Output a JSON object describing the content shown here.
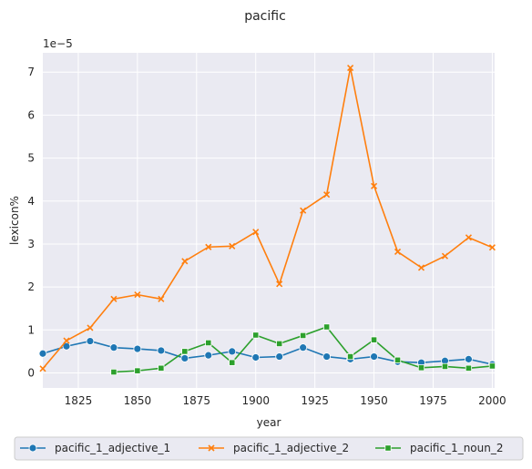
{
  "chart_data": {
    "type": "line",
    "title": "pacific",
    "xlabel": "year",
    "ylabel": "lexicon%",
    "y_scale_label": "1e−5",
    "xlim": [
      1810,
      2001
    ],
    "ylim": [
      -0.35,
      7.45
    ],
    "x_ticks": [
      1825,
      1850,
      1875,
      1900,
      1925,
      1950,
      1975,
      2000
    ],
    "y_ticks": [
      0,
      1,
      2,
      3,
      4,
      5,
      6,
      7
    ],
    "grid": true,
    "legend_position": "bottom",
    "series": [
      {
        "name": "pacific_1_adjective_1",
        "color": "#1f77b4",
        "marker": "circle",
        "x": [
          1810,
          1820,
          1830,
          1840,
          1850,
          1860,
          1870,
          1880,
          1890,
          1900,
          1910,
          1920,
          1930,
          1940,
          1950,
          1960,
          1970,
          1980,
          1990,
          2000
        ],
        "y": [
          0.45,
          0.62,
          0.74,
          0.59,
          0.56,
          0.52,
          0.34,
          0.41,
          0.5,
          0.36,
          0.38,
          0.59,
          0.38,
          0.32,
          0.38,
          0.26,
          0.24,
          0.28,
          0.32,
          0.2
        ]
      },
      {
        "name": "pacific_1_adjective_2",
        "color": "#ff7f0e",
        "marker": "x",
        "x": [
          1810,
          1820,
          1830,
          1840,
          1850,
          1860,
          1870,
          1880,
          1890,
          1900,
          1910,
          1920,
          1930,
          1940,
          1950,
          1960,
          1970,
          1980,
          1990,
          2000
        ],
        "y": [
          0.1,
          0.75,
          1.05,
          1.72,
          1.82,
          1.72,
          2.6,
          2.93,
          2.95,
          3.28,
          2.07,
          3.78,
          4.15,
          7.1,
          4.35,
          2.82,
          2.45,
          2.72,
          3.15,
          2.92
        ]
      },
      {
        "name": "pacific_1_noun_2",
        "color": "#2ca02c",
        "marker": "square",
        "x": [
          1840,
          1850,
          1860,
          1870,
          1880,
          1890,
          1900,
          1910,
          1920,
          1930,
          1940,
          1950,
          1960,
          1970,
          1980,
          1990,
          2000
        ],
        "y": [
          0.02,
          0.05,
          0.11,
          0.5,
          0.7,
          0.24,
          0.88,
          0.68,
          0.87,
          1.07,
          0.38,
          0.77,
          0.3,
          0.12,
          0.15,
          0.11,
          0.16
        ]
      }
    ]
  }
}
